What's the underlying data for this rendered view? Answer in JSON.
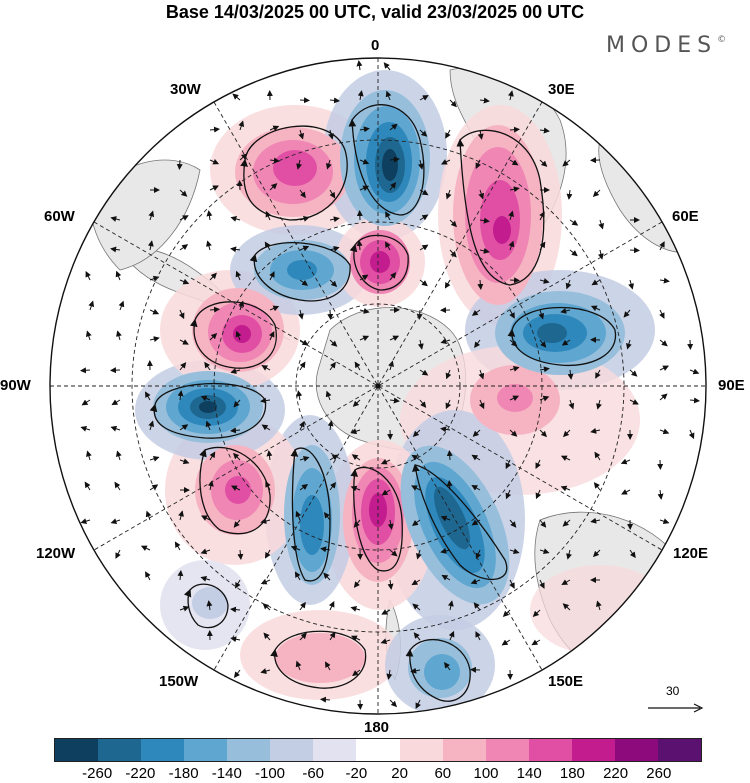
{
  "title": "Base 14/03/2025 00 UTC, valid 23/03/2025 00 UTC",
  "brand": "MODES",
  "brand_mark": "©",
  "longitude_labels": {
    "lon_0": "0",
    "lon_30e": "30E",
    "lon_60e": "60E",
    "lon_90e": "90E",
    "lon_120e": "120E",
    "lon_150e": "150E",
    "lon_180": "180",
    "lon_150w": "150W",
    "lon_120w": "120W",
    "lon_90w": "90W",
    "lon_60w": "60W",
    "lon_30w": "30W"
  },
  "reference_vector": "30",
  "colorbar": {
    "colors": [
      "#0e3f5f",
      "#1d6791",
      "#2f88bb",
      "#5fa6d0",
      "#97bfdc",
      "#c3cde4",
      "#e2e2f0",
      "#ffffff",
      "#f9d9dc",
      "#f6b4c2",
      "#ef86b3",
      "#e04fa4",
      "#c21c8e",
      "#8c0a7c",
      "#5a1170"
    ],
    "ticks": [
      "-260",
      "-220",
      "-180",
      "-140",
      "-100",
      "-60",
      "-20",
      "20",
      "60",
      "100",
      "140",
      "180",
      "220",
      "260"
    ]
  },
  "map_colors": {
    "land": "#e8e8e8",
    "coast": "#777777",
    "grid": "#222222"
  }
}
